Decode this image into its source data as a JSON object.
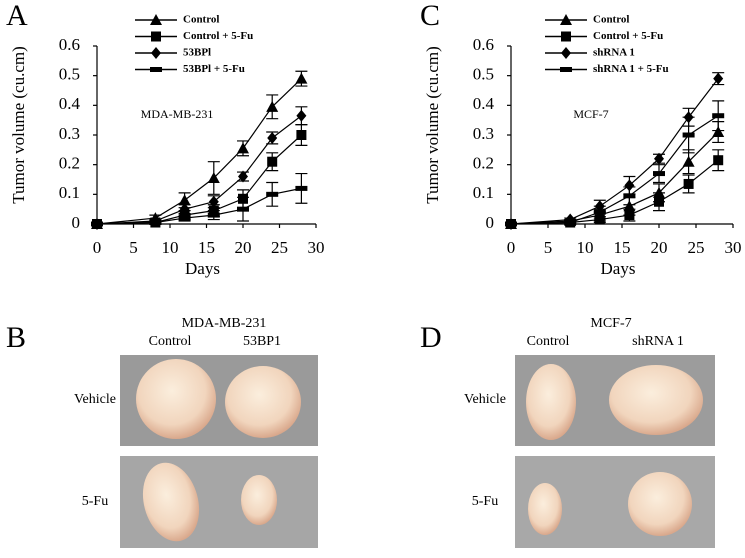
{
  "chart_data": [
    {
      "type": "line",
      "panel": "A",
      "annotation": "MDA-MB-231",
      "xlabel": "Days",
      "ylabel": "Tumor volume (cu.cm)",
      "x": [
        0,
        8,
        12,
        16,
        20,
        24,
        28
      ],
      "xlim": [
        0,
        30
      ],
      "xticks": [
        0,
        5,
        10,
        15,
        20,
        25,
        30
      ],
      "ylim": [
        0,
        0.6
      ],
      "yticks": [
        0,
        0.1,
        0.2,
        0.3,
        0.4,
        0.5,
        0.6
      ],
      "series": [
        {
          "name": "Control",
          "color": "#000000",
          "marker": "triangle",
          "values": [
            0,
            0.02,
            0.08,
            0.155,
            0.255,
            0.395,
            0.49
          ],
          "errors": [
            0,
            0.01,
            0.025,
            0.055,
            0.025,
            0.04,
            0.025
          ]
        },
        {
          "name": "Control + 5-Fu",
          "color": "#000000",
          "marker": "square",
          "values": [
            0,
            0.005,
            0.03,
            0.045,
            0.085,
            0.21,
            0.3
          ],
          "errors": [
            0,
            0.005,
            0.015,
            0.02,
            0.03,
            0.03,
            0.035
          ]
        },
        {
          "name": "53BPl",
          "color": "#000000",
          "marker": "diamond",
          "values": [
            0,
            0.01,
            0.05,
            0.075,
            0.16,
            0.29,
            0.365
          ],
          "errors": [
            0,
            0.005,
            0.015,
            0.02,
            0.015,
            0.02,
            0.03
          ]
        },
        {
          "name": "53BPl + 5-Fu",
          "color": "#000000",
          "marker": "bar",
          "values": [
            0,
            0.005,
            0.02,
            0.03,
            0.05,
            0.1,
            0.12
          ],
          "errors": [
            0,
            0.005,
            0.01,
            0.015,
            0.04,
            0.04,
            0.05
          ]
        }
      ]
    },
    {
      "type": "line",
      "panel": "C",
      "annotation": "MCF-7",
      "xlabel": "Days",
      "ylabel": "Tumor volume (cu.cm)",
      "x": [
        0,
        8,
        12,
        16,
        20,
        24,
        28
      ],
      "xlim": [
        0,
        30
      ],
      "xticks": [
        0,
        5,
        10,
        15,
        20,
        25,
        30
      ],
      "ylim": [
        0,
        0.6
      ],
      "yticks": [
        0,
        0.1,
        0.2,
        0.3,
        0.4,
        0.5,
        0.6
      ],
      "series": [
        {
          "name": "Control",
          "color": "#000000",
          "marker": "triangle",
          "values": [
            0,
            0.01,
            0.03,
            0.06,
            0.105,
            0.21,
            0.31
          ],
          "errors": [
            0,
            0.005,
            0.02,
            0.03,
            0.03,
            0.04,
            0.035
          ]
        },
        {
          "name": "Control + 5-Fu",
          "color": "#000000",
          "marker": "square",
          "values": [
            0,
            0.005,
            0.015,
            0.03,
            0.075,
            0.135,
            0.215
          ],
          "errors": [
            0,
            0.005,
            0.01,
            0.02,
            0.03,
            0.03,
            0.035
          ]
        },
        {
          "name": "shRNA 1",
          "color": "#000000",
          "marker": "diamond",
          "values": [
            0,
            0.015,
            0.06,
            0.13,
            0.22,
            0.36,
            0.49
          ],
          "errors": [
            0,
            0.005,
            0.02,
            0.03,
            0.015,
            0.03,
            0.02
          ]
        },
        {
          "name": "shRNA 1 + 5-Fu",
          "color": "#000000",
          "marker": "bar",
          "values": [
            0,
            0.005,
            0.04,
            0.095,
            0.17,
            0.3,
            0.365
          ],
          "errors": [
            0,
            0.005,
            0.02,
            0.03,
            0.03,
            0.06,
            0.05
          ]
        }
      ]
    }
  ],
  "photo_panels": [
    {
      "panel": "B",
      "title": "MDA-MB-231",
      "columns": [
        "Control",
        "53BP1"
      ],
      "rows": [
        "Vehicle",
        "5-Fu"
      ]
    },
    {
      "panel": "D",
      "title": "MCF-7",
      "columns": [
        "Control",
        "shRNA 1"
      ],
      "rows": [
        "Vehicle",
        "5-Fu"
      ]
    }
  ]
}
